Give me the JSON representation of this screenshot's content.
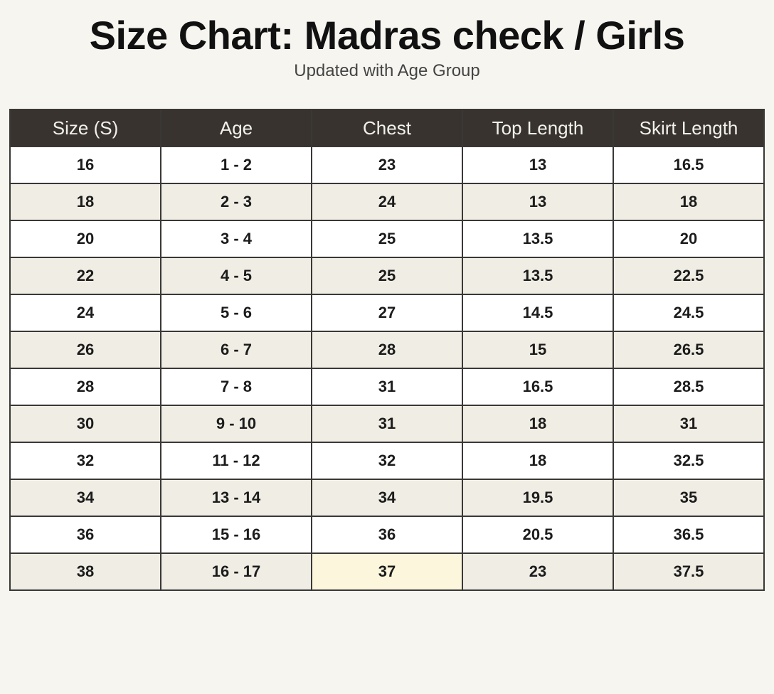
{
  "title": "Size Chart: Madras check / Girls",
  "subtitle": "Updated with Age Group",
  "table": {
    "headers": [
      "Size (S)",
      "Age",
      "Chest",
      "Top Length",
      "Skirt Length"
    ],
    "rows": [
      [
        "16",
        "1 - 2",
        "23",
        "13",
        "16.5"
      ],
      [
        "18",
        "2 - 3",
        "24",
        "13",
        "18"
      ],
      [
        "20",
        "3 - 4",
        "25",
        "13.5",
        "20"
      ],
      [
        "22",
        "4 - 5",
        "25",
        "13.5",
        "22.5"
      ],
      [
        "24",
        "5 - 6",
        "27",
        "14.5",
        "24.5"
      ],
      [
        "26",
        "6 - 7",
        "28",
        "15",
        "26.5"
      ],
      [
        "28",
        "7 - 8",
        "31",
        "16.5",
        "28.5"
      ],
      [
        "30",
        "9 - 10",
        "31",
        "18",
        "31"
      ],
      [
        "32",
        "11 - 12",
        "32",
        "18",
        "32.5"
      ],
      [
        "34",
        "13 - 14",
        "34",
        "19.5",
        "35"
      ],
      [
        "36",
        "15 - 16",
        "36",
        "20.5",
        "36.5"
      ],
      [
        "38",
        "16 - 17",
        "37",
        "23",
        "37.5"
      ]
    ]
  },
  "colors": {
    "header_bg": "#38332f",
    "header_text": "#f2f0ea",
    "row_alt": "#f0ede4",
    "highlight_cell": "#fbf6dc"
  }
}
